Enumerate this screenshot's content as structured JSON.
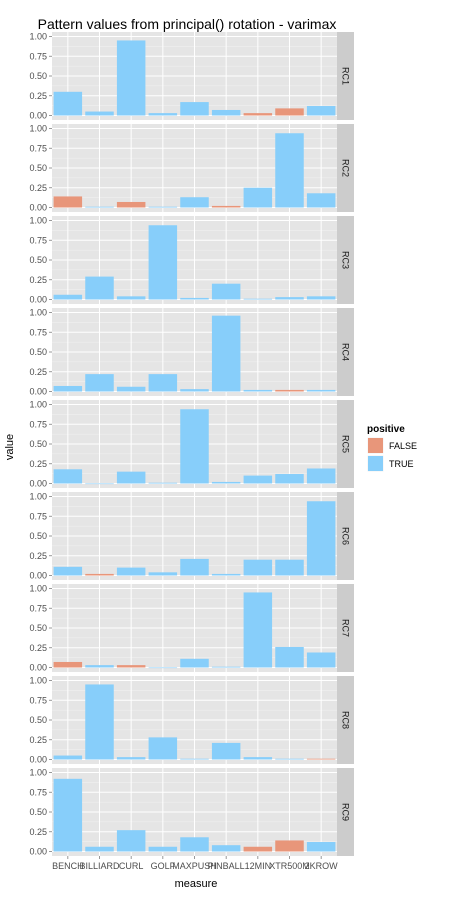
{
  "chart_data": {
    "type": "bar",
    "title": "Pattern values from principal() rotation - varimax",
    "xlabel": "measure",
    "ylabel": "value",
    "categories": [
      "BENCH",
      "BILLIARD",
      "CURL",
      "GOLF",
      "MAXPUSH",
      "PINBALL",
      "12MIN",
      "XTR500M",
      "2KROW"
    ],
    "ylim": [
      0,
      1
    ],
    "yticks": [
      "0.00",
      "0.25",
      "0.50",
      "0.75",
      "1.00"
    ],
    "grid": true,
    "legend": {
      "title": "positive",
      "position": "right",
      "items": [
        {
          "label": "FALSE",
          "color": "#E8967A"
        },
        {
          "label": "TRUE",
          "color": "#87CEFA"
        }
      ]
    },
    "facets": [
      {
        "label": "RC1",
        "values": [
          0.3,
          0.05,
          0.95,
          0.03,
          0.17,
          0.07,
          0.03,
          0.09,
          0.12
        ],
        "positive": [
          true,
          true,
          true,
          true,
          true,
          true,
          false,
          false,
          true
        ]
      },
      {
        "label": "RC2",
        "values": [
          0.14,
          0.01,
          0.07,
          0.01,
          0.13,
          0.02,
          0.25,
          0.94,
          0.18
        ],
        "positive": [
          false,
          true,
          false,
          true,
          true,
          false,
          true,
          true,
          true
        ]
      },
      {
        "label": "RC3",
        "values": [
          0.06,
          0.29,
          0.04,
          0.94,
          0.02,
          0.2,
          0.01,
          0.03,
          0.04
        ],
        "positive": [
          true,
          true,
          true,
          true,
          true,
          true,
          true,
          true,
          true
        ]
      },
      {
        "label": "RC4",
        "values": [
          0.07,
          0.22,
          0.06,
          0.22,
          0.03,
          0.96,
          0.02,
          0.02,
          0.02
        ],
        "positive": [
          true,
          true,
          true,
          true,
          true,
          true,
          true,
          false,
          true
        ]
      },
      {
        "label": "RC5",
        "values": [
          0.18,
          0.0,
          0.15,
          0.01,
          0.94,
          0.02,
          0.1,
          0.12,
          0.19
        ],
        "positive": [
          true,
          true,
          true,
          true,
          true,
          true,
          true,
          true,
          true
        ]
      },
      {
        "label": "RC6",
        "values": [
          0.11,
          0.02,
          0.1,
          0.04,
          0.21,
          0.02,
          0.2,
          0.2,
          0.94
        ],
        "positive": [
          true,
          false,
          true,
          true,
          true,
          true,
          true,
          true,
          true
        ]
      },
      {
        "label": "RC7",
        "values": [
          0.07,
          0.03,
          0.03,
          0.0,
          0.11,
          0.01,
          0.95,
          0.26,
          0.19
        ],
        "positive": [
          false,
          true,
          false,
          true,
          true,
          true,
          true,
          true,
          true
        ]
      },
      {
        "label": "RC8",
        "values": [
          0.05,
          0.95,
          0.03,
          0.28,
          0.01,
          0.21,
          0.03,
          0.01,
          0.01
        ],
        "positive": [
          true,
          true,
          true,
          true,
          true,
          true,
          true,
          true,
          false
        ]
      },
      {
        "label": "RC9",
        "values": [
          0.92,
          0.06,
          0.27,
          0.06,
          0.18,
          0.08,
          0.06,
          0.14,
          0.12
        ],
        "positive": [
          true,
          true,
          true,
          true,
          true,
          true,
          false,
          false,
          true
        ]
      }
    ]
  }
}
